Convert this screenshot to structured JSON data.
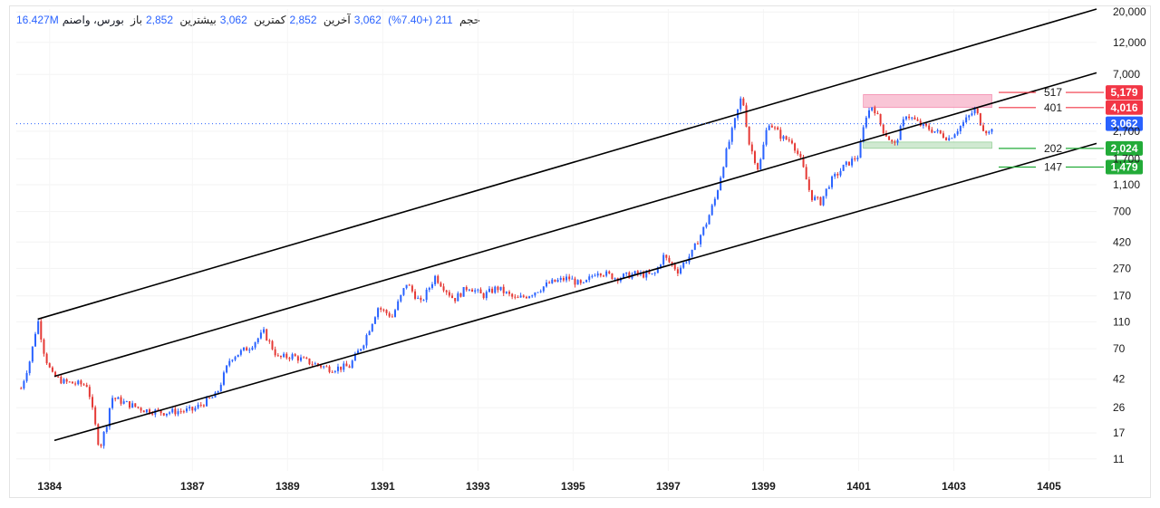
{
  "header": {
    "name": "بورس، واصنم",
    "open_label": "باز",
    "open_value": "2,852",
    "high_label": "بیشترین",
    "high_value": "3,062",
    "low_label": "کمترین",
    "low_value": "2,852",
    "close_label": "آخرین",
    "close_value": "3,062",
    "change": "211 (+7.40%)",
    "volume_label": "حجم",
    "volume_value": "16.427M"
  },
  "colors": {
    "up": "#2962ff",
    "down": "#e53935",
    "trend": "#000000",
    "resistance": "#f23645",
    "support": "#22ab38",
    "current": "#2962ff"
  },
  "chart_data": {
    "type": "candlestick",
    "y_scale": "log",
    "ylim": [
      9,
      21000
    ],
    "y_ticks": [
      11,
      17,
      26,
      42,
      70,
      110,
      170,
      270,
      420,
      700,
      "1,100",
      "1,700",
      "2,700",
      "7,000",
      "12,000",
      "20,000"
    ],
    "x_ticks": [
      "1384",
      "1387",
      "1389",
      "1391",
      "1393",
      "1395",
      "1397",
      "1399",
      "1401",
      "1403",
      "1405"
    ],
    "xlim": [
      1383.3,
      1406.0
    ],
    "price_path": [
      [
        1383.4,
        36
      ],
      [
        1383.6,
        60
      ],
      [
        1383.75,
        115
      ],
      [
        1383.9,
        62
      ],
      [
        1384.05,
        45
      ],
      [
        1384.3,
        40
      ],
      [
        1384.8,
        38
      ],
      [
        1385.05,
        13
      ],
      [
        1385.2,
        20
      ],
      [
        1385.3,
        31
      ],
      [
        1385.6,
        28
      ],
      [
        1386.0,
        25
      ],
      [
        1386.4,
        24
      ],
      [
        1387.0,
        25
      ],
      [
        1387.5,
        32
      ],
      [
        1387.8,
        60
      ],
      [
        1388.2,
        72
      ],
      [
        1388.5,
        92
      ],
      [
        1388.8,
        60
      ],
      [
        1389.1,
        62
      ],
      [
        1389.5,
        55
      ],
      [
        1389.9,
        50
      ],
      [
        1390.3,
        52
      ],
      [
        1390.6,
        78
      ],
      [
        1390.9,
        140
      ],
      [
        1391.2,
        120
      ],
      [
        1391.5,
        210
      ],
      [
        1391.8,
        150
      ],
      [
        1392.1,
        235
      ],
      [
        1392.5,
        160
      ],
      [
        1392.8,
        200
      ],
      [
        1393.1,
        170
      ],
      [
        1393.4,
        195
      ],
      [
        1393.8,
        160
      ],
      [
        1394.1,
        175
      ],
      [
        1394.5,
        210
      ],
      [
        1394.9,
        230
      ],
      [
        1395.2,
        200
      ],
      [
        1395.5,
        260
      ],
      [
        1395.9,
        230
      ],
      [
        1396.3,
        245
      ],
      [
        1396.7,
        240
      ],
      [
        1396.9,
        330
      ],
      [
        1397.2,
        260
      ],
      [
        1397.5,
        350
      ],
      [
        1397.8,
        580
      ],
      [
        1398.0,
        900
      ],
      [
        1398.2,
        1800
      ],
      [
        1398.4,
        3200
      ],
      [
        1398.55,
        5000
      ],
      [
        1398.7,
        2200
      ],
      [
        1398.9,
        1400
      ],
      [
        1399.1,
        3200
      ],
      [
        1399.4,
        2400
      ],
      [
        1399.6,
        2300
      ],
      [
        1399.8,
        1600
      ],
      [
        1400.0,
        900
      ],
      [
        1400.2,
        820
      ],
      [
        1400.4,
        1150
      ],
      [
        1400.7,
        1500
      ],
      [
        1401.0,
        1800
      ],
      [
        1401.15,
        3500
      ],
      [
        1401.3,
        4200
      ],
      [
        1401.5,
        2800
      ],
      [
        1401.75,
        2100
      ],
      [
        1402.0,
        3600
      ],
      [
        1402.3,
        3000
      ],
      [
        1402.6,
        2700
      ],
      [
        1402.9,
        2400
      ],
      [
        1403.2,
        3100
      ],
      [
        1403.45,
        3900
      ],
      [
        1403.6,
        2900
      ],
      [
        1403.75,
        2600
      ],
      [
        1403.82,
        3062
      ]
    ],
    "trend_lines": [
      {
        "name": "upper-channel",
        "from": [
          1383.75,
          115
        ],
        "to": [
          1406.0,
          21000
        ]
      },
      {
        "name": "middle-channel",
        "from": [
          1384.1,
          44
        ],
        "to": [
          1406.0,
          7200
        ]
      },
      {
        "name": "lower-channel",
        "from": [
          1384.1,
          15
        ],
        "to": [
          1406.0,
          2200
        ]
      }
    ],
    "zones": [
      {
        "name": "resistance-zone",
        "x0": 1401.1,
        "x1": 1403.8,
        "y0": 4016,
        "y1": 5000,
        "color": "#f8bbd0"
      },
      {
        "name": "support-zone",
        "x0": 1401.1,
        "x1": 1403.8,
        "y0": 2024,
        "y1": 2250,
        "color": "#c8e6c9"
      }
    ],
    "levels": [
      {
        "name": "level-517",
        "label": "517",
        "value": 5179,
        "tag": "5,179",
        "kind": "resistance"
      },
      {
        "name": "level-401",
        "label": "401",
        "value": 4016,
        "tag": "4,016",
        "kind": "resistance"
      },
      {
        "name": "level-202",
        "label": "202",
        "value": 2024,
        "tag": "2,024",
        "kind": "support"
      },
      {
        "name": "level-147",
        "label": "147",
        "value": 1479,
        "tag": "1,479",
        "kind": "support"
      }
    ],
    "current_price": {
      "value": 3062,
      "tag": "3,062"
    }
  }
}
